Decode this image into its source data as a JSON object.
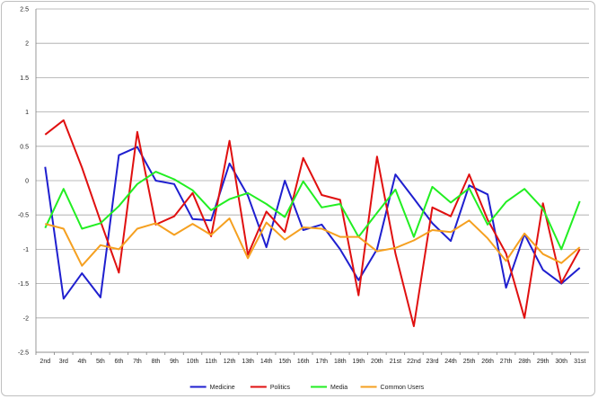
{
  "chart_data": {
    "type": "line",
    "title": "",
    "xlabel": "",
    "ylabel": "",
    "ylim": [
      -2.5,
      2.5
    ],
    "y_ticks": [
      2.5,
      2,
      1.5,
      1,
      0.5,
      0,
      -0.5,
      -1,
      -1.5,
      -2,
      -2.5
    ],
    "grid": "horizontal",
    "legend_position": "bottom",
    "categories": [
      "2nd",
      "3rd",
      "4th",
      "5th",
      "6th",
      "7th",
      "8th",
      "9th",
      "10th",
      "11th",
      "12th",
      "13th",
      "14th",
      "15th",
      "16th",
      "17th",
      "18th",
      "19th",
      "20th",
      "21st",
      "22nd",
      "23rd",
      "24th",
      "25th",
      "26th",
      "27th",
      "28th",
      "29th",
      "30th",
      "31st"
    ],
    "series": [
      {
        "name": "Medicine",
        "color": "#1f1fcf",
        "values": [
          0.2,
          -1.72,
          -1.35,
          -1.7,
          0.37,
          0.49,
          0.0,
          -0.05,
          -0.56,
          -0.58,
          0.25,
          -0.22,
          -0.97,
          0.0,
          -0.72,
          -0.64,
          -1.0,
          -1.45,
          -1.0,
          0.09,
          -0.26,
          -0.62,
          -0.88,
          -0.07,
          -0.2,
          -1.56,
          -0.78,
          -1.3,
          -1.5,
          -1.27
        ]
      },
      {
        "name": "Politics",
        "color": "#e01010",
        "values": [
          0.67,
          0.88,
          0.19,
          -0.59,
          -1.34,
          0.71,
          -0.64,
          -0.52,
          -0.18,
          -0.81,
          0.58,
          -1.08,
          -0.45,
          -0.75,
          0.33,
          -0.21,
          -0.28,
          -1.67,
          0.35,
          -1.06,
          -2.12,
          -0.39,
          -0.52,
          0.09,
          -0.57,
          -1.06,
          -2.0,
          -0.33,
          -1.49,
          -1.0
        ]
      },
      {
        "name": "Media",
        "color": "#22ee22",
        "values": [
          -0.69,
          -0.12,
          -0.7,
          -0.62,
          -0.37,
          -0.05,
          0.13,
          0.02,
          -0.14,
          -0.43,
          -0.27,
          -0.18,
          -0.34,
          -0.53,
          -0.01,
          -0.39,
          -0.34,
          -0.82,
          -0.47,
          -0.13,
          -0.82,
          -0.09,
          -0.32,
          -0.11,
          -0.64,
          -0.31,
          -0.12,
          -0.41,
          -1.0,
          -0.3
        ]
      },
      {
        "name": "Common Users",
        "color": "#f5a020",
        "values": [
          -0.63,
          -0.7,
          -1.24,
          -0.94,
          -1.0,
          -0.7,
          -0.62,
          -0.79,
          -0.63,
          -0.79,
          -0.55,
          -1.13,
          -0.61,
          -0.86,
          -0.68,
          -0.7,
          -0.82,
          -0.82,
          -1.03,
          -0.98,
          -0.87,
          -0.72,
          -0.75,
          -0.58,
          -0.84,
          -1.17,
          -0.77,
          -1.07,
          -1.2,
          -0.97
        ]
      }
    ]
  }
}
